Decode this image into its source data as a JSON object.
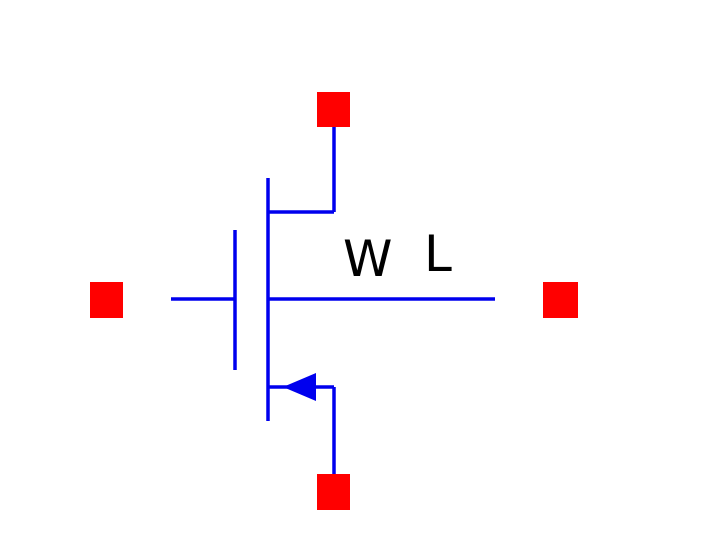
{
  "symbol": {
    "type": "nmos-transistor",
    "labels": {
      "width": "W",
      "length": "L"
    }
  },
  "pins": [
    {
      "name": "drain-pin"
    },
    {
      "name": "gate-pin"
    },
    {
      "name": "bulk-pin"
    },
    {
      "name": "source-pin"
    }
  ],
  "colors": {
    "wire": "#0000ee",
    "pin": "#ff0000",
    "label": "#000000",
    "background": "#ffffff"
  }
}
